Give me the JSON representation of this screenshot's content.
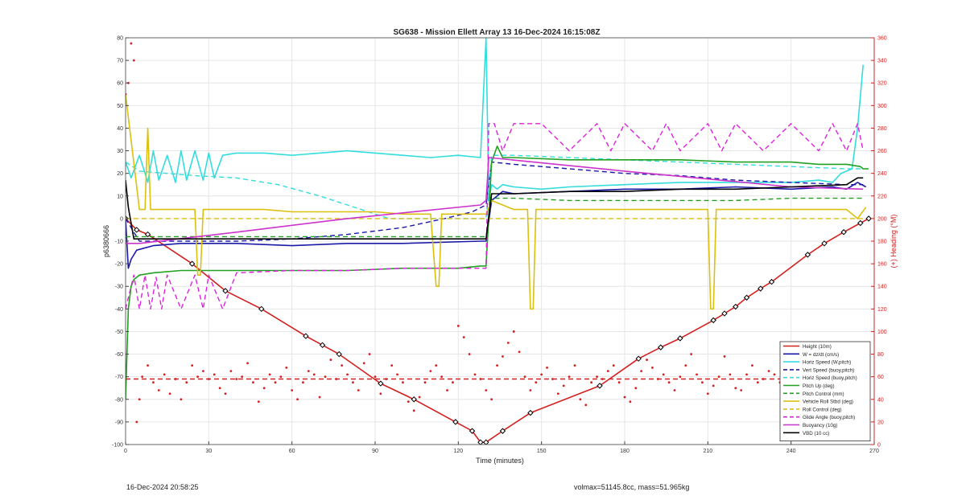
{
  "chart_data": {
    "type": "line",
    "title": "SG638 - Mission Ellett Array 13 16-Dec-2024 16:15:08Z",
    "xlabel": "Time (minutes)",
    "ylabel": "p6380666",
    "y2label": "(+) Heading (°M)",
    "xlim": [
      0,
      270
    ],
    "ylim": [
      -100,
      80
    ],
    "y2lim": [
      0,
      360
    ],
    "xticks": [
      0,
      30,
      60,
      90,
      120,
      150,
      180,
      210,
      240,
      270
    ],
    "yticks": [
      -100,
      -90,
      -80,
      -70,
      -60,
      -50,
      -40,
      -30,
      -20,
      -10,
      0,
      10,
      20,
      30,
      40,
      50,
      60,
      70,
      80
    ],
    "y2ticks": [
      0,
      20,
      40,
      60,
      80,
      100,
      120,
      140,
      160,
      180,
      200,
      220,
      240,
      260,
      280,
      300,
      320,
      340,
      360
    ],
    "grid": true,
    "legend_position": "bottom-right",
    "legend": [
      {
        "label": "Height (10m)",
        "color": "#d42020",
        "dash": false
      },
      {
        "label": "W = dz/dt (cm/s)",
        "color": "#1a1aa8",
        "dash": false
      },
      {
        "label": "Horiz Speed (W,pitch)",
        "color": "#33dddd",
        "dash": false
      },
      {
        "label": "Vert Speed (buoy,pitch)",
        "color": "#1a1aa8",
        "dash": true
      },
      {
        "label": "Horiz Speed (buoy,pitch)",
        "color": "#33dddd",
        "dash": true
      },
      {
        "label": "Pitch Up (deg)",
        "color": "#22a022",
        "dash": false
      },
      {
        "label": "Pitch Control (mm)",
        "color": "#22a022",
        "dash": true
      },
      {
        "label": "Vehicle Roll Stbd (deg)",
        "color": "#dcc010",
        "dash": false
      },
      {
        "label": "Roll Control (deg)",
        "color": "#dcc010",
        "dash": true
      },
      {
        "label": "Glide Angle (buoy,pitch)",
        "color": "#dd22dd",
        "dash": true
      },
      {
        "label": "Buoyancy (10g)",
        "color": "#cc33cc",
        "dash": false
      },
      {
        "label": "VBD (10 cc)",
        "color": "#000000",
        "dash": false
      }
    ],
    "series": [
      {
        "name": "Height (10m)",
        "axis": "left",
        "color": "#d42020",
        "marker": "diamond",
        "x": [
          0,
          4,
          8,
          24,
          36,
          49,
          65,
          71,
          77,
          92,
          104,
          119,
          125,
          128,
          130,
          136,
          146,
          171,
          185,
          193,
          200,
          212,
          216,
          220,
          224,
          229,
          233,
          246,
          252,
          259,
          265,
          268
        ],
        "y": [
          0,
          -5,
          -7,
          -20,
          -32,
          -40,
          -52,
          -56,
          -60,
          -73,
          -80,
          -90,
          -94,
          -99,
          -99,
          -94,
          -86,
          -74,
          -62,
          -57,
          -53,
          -45,
          -42,
          -39,
          -35,
          -31,
          -28,
          -16,
          -11,
          -6,
          -2,
          0
        ]
      },
      {
        "name": "W = dz/dt (cm/s)",
        "axis": "left",
        "color": "#1a1aa8",
        "dash": false,
        "x": [
          0,
          1,
          2,
          4,
          10,
          20,
          40,
          60,
          80,
          100,
          128,
          130,
          132,
          136,
          140,
          160,
          180,
          200,
          220,
          240,
          255,
          260,
          264,
          267
        ],
        "y": [
          0,
          -22,
          -18,
          -14,
          -12,
          -11,
          -11,
          -12,
          -11,
          -11,
          -10,
          -10,
          8,
          12,
          11,
          12,
          13,
          13,
          14,
          13,
          14,
          13,
          16,
          14
        ]
      },
      {
        "name": "Horiz Speed (W,pitch)",
        "axis": "left",
        "color": "#33dddd",
        "dash": false,
        "x": [
          0,
          2,
          5,
          8,
          10,
          12,
          15,
          18,
          20,
          22,
          25,
          28,
          30,
          32,
          35,
          40,
          50,
          60,
          70,
          80,
          90,
          100,
          110,
          120,
          128,
          130,
          131,
          132,
          134,
          136,
          140,
          150,
          160,
          180,
          200,
          220,
          240,
          250,
          255,
          258,
          262,
          264,
          266
        ],
        "y": [
          25,
          18,
          28,
          16,
          30,
          17,
          28,
          16,
          30,
          17,
          30,
          17,
          29,
          18,
          28,
          29,
          29,
          28,
          29,
          30,
          29,
          28,
          27,
          28,
          27,
          80,
          8,
          15,
          13,
          15,
          14,
          13,
          14,
          15,
          16,
          16,
          16,
          17,
          16,
          20,
          22,
          40,
          68
        ]
      },
      {
        "name": "Vert Speed (buoy,pitch)",
        "axis": "left",
        "color": "#1a1aa8",
        "dash": true,
        "x": [
          0,
          5,
          20,
          40,
          60,
          80,
          100,
          115,
          125,
          130,
          132,
          140,
          160,
          180,
          200,
          220,
          240,
          260,
          266
        ],
        "y": [
          0,
          -10,
          -10,
          -10,
          -9,
          -7,
          -4,
          0,
          3,
          6,
          25,
          24,
          22,
          20,
          19,
          17,
          16,
          15,
          15
        ]
      },
      {
        "name": "Horiz Speed (buoy,pitch)",
        "axis": "left",
        "color": "#33dddd",
        "dash": true,
        "x": [
          0,
          5,
          15,
          25,
          40,
          55,
          70,
          85,
          95,
          105,
          115,
          125,
          130,
          132,
          140,
          160,
          180,
          200,
          220,
          240,
          260,
          266
        ],
        "y": [
          25,
          21,
          20,
          19,
          18,
          15,
          10,
          4,
          0,
          0,
          0,
          0,
          0,
          28,
          28,
          27,
          26,
          25,
          24,
          23,
          22,
          22
        ]
      },
      {
        "name": "Pitch Up (deg)",
        "axis": "left",
        "color": "#22a022",
        "dash": false,
        "x": [
          0,
          1,
          2,
          3,
          5,
          10,
          20,
          40,
          60,
          80,
          100,
          120,
          128,
          130,
          132,
          134,
          136,
          140,
          160,
          180,
          200,
          220,
          240,
          250,
          260,
          265,
          266,
          268
        ],
        "y": [
          -80,
          -40,
          -30,
          -27,
          -25,
          -24,
          -23,
          -23,
          -23,
          -23,
          -22,
          -22,
          -21,
          -21,
          25,
          32,
          27,
          27,
          26,
          26,
          26,
          25,
          25,
          24,
          24,
          23,
          22,
          22
        ]
      },
      {
        "name": "Pitch Control (mm)",
        "axis": "left",
        "color": "#22a022",
        "dash": true,
        "x": [
          0,
          5,
          20,
          40,
          60,
          80,
          100,
          120,
          130,
          132,
          140,
          160,
          180,
          200,
          220,
          240,
          260,
          266
        ],
        "y": [
          -8,
          -8,
          -8,
          -8,
          -8,
          -8,
          -8,
          -8,
          -8,
          9,
          9,
          8,
          8,
          8,
          8,
          9,
          9,
          9
        ]
      },
      {
        "name": "Vehicle Roll Stbd (deg)",
        "axis": "left",
        "color": "#dcc010",
        "dash": false,
        "x": [
          0,
          5,
          7,
          8,
          9,
          10,
          20,
          25,
          26,
          27,
          28,
          40,
          50,
          60,
          70,
          80,
          90,
          100,
          110,
          112,
          113,
          114,
          120,
          128,
          130,
          132,
          140,
          145,
          146,
          147,
          148,
          160,
          180,
          200,
          210,
          211,
          212,
          213,
          230,
          240,
          250,
          260,
          264,
          267
        ],
        "y": [
          55,
          4,
          4,
          40,
          4,
          4,
          4,
          4,
          -25,
          -25,
          4,
          4,
          4,
          3,
          3,
          3,
          3,
          2,
          2,
          -30,
          -30,
          2,
          2,
          2,
          2,
          8,
          4,
          4,
          -40,
          -40,
          4,
          4,
          4,
          4,
          4,
          -40,
          -40,
          4,
          4,
          4,
          4,
          4,
          0,
          5
        ]
      },
      {
        "name": "Roll Control (deg)",
        "axis": "left",
        "color": "#dcc010",
        "dash": true,
        "x": [
          0,
          5,
          10,
          20,
          40,
          60,
          80,
          100,
          120,
          130,
          132,
          140,
          160,
          180,
          200,
          220,
          240,
          260,
          266
        ],
        "y": [
          0,
          0,
          0,
          0,
          0,
          0,
          0,
          0,
          0,
          0,
          0,
          0,
          0,
          0,
          0,
          0,
          0,
          0,
          0
        ]
      },
      {
        "name": "Glide Angle (buoy,pitch)",
        "axis": "left",
        "color": "#dd22dd",
        "dash": true,
        "x": [
          0,
          3,
          5,
          7,
          9,
          11,
          13,
          15,
          20,
          25,
          28,
          30,
          35,
          40,
          60,
          80,
          100,
          120,
          130,
          131,
          133,
          136,
          140,
          145,
          150,
          160,
          170,
          175,
          180,
          190,
          195,
          200,
          210,
          215,
          220,
          230,
          240,
          250,
          255,
          260,
          264,
          266
        ],
        "y": [
          -40,
          -25,
          -40,
          -25,
          -40,
          -26,
          -40,
          -25,
          -40,
          -25,
          -40,
          -25,
          -40,
          -24,
          -23,
          -23,
          -22,
          -22,
          -22,
          42,
          42,
          30,
          42,
          42,
          42,
          30,
          42,
          30,
          42,
          30,
          42,
          30,
          42,
          30,
          42,
          30,
          42,
          30,
          42,
          30,
          42,
          30
        ]
      },
      {
        "name": "Buoyancy (10g)",
        "axis": "left",
        "color": "#cc33cc",
        "dash": false,
        "x": [
          0,
          5,
          40,
          80,
          128,
          130,
          131,
          180,
          240,
          266
        ],
        "y": [
          -11,
          -11,
          -6,
          0,
          6,
          8,
          27,
          21,
          14,
          13
        ]
      },
      {
        "name": "VBD (10 cc)",
        "axis": "left",
        "color": "#000000",
        "dash": false,
        "x": [
          0,
          1,
          3,
          20,
          40,
          60,
          80,
          100,
          128,
          130,
          132,
          140,
          160,
          180,
          200,
          220,
          240,
          260,
          264,
          266
        ],
        "y": [
          17,
          5,
          -9,
          -9,
          -9,
          -9,
          -9,
          -9,
          -9,
          -9,
          11,
          11,
          12,
          12,
          13,
          13,
          14,
          15,
          18,
          18
        ]
      },
      {
        "name": "Heading",
        "axis": "right",
        "color": "#d42020",
        "marker": "dot",
        "x": [
          0,
          1,
          2,
          3,
          4,
          5,
          6,
          8,
          10,
          12,
          14,
          16,
          18,
          20,
          22,
          24,
          26,
          28,
          30,
          32,
          34,
          36,
          38,
          40,
          42,
          44,
          46,
          48,
          50,
          52,
          54,
          56,
          58,
          60,
          62,
          64,
          66,
          68,
          70,
          72,
          74,
          76,
          78,
          80,
          82,
          84,
          86,
          88,
          90,
          92,
          94,
          96,
          98,
          100,
          102,
          104,
          106,
          108,
          110,
          112,
          114,
          116,
          118,
          120,
          122,
          124,
          126,
          128,
          130,
          132,
          134,
          136,
          138,
          140,
          142,
          144,
          146,
          148,
          150,
          152,
          154,
          156,
          158,
          160,
          162,
          164,
          166,
          168,
          170,
          172,
          174,
          176,
          178,
          180,
          182,
          184,
          186,
          188,
          190,
          192,
          194,
          196,
          198,
          200,
          202,
          204,
          206,
          208,
          210,
          212,
          214,
          216,
          218,
          220,
          222,
          224,
          226,
          228,
          230,
          232,
          234,
          236,
          238,
          240,
          242,
          244,
          246,
          248,
          250,
          252,
          254,
          256,
          258,
          260,
          262,
          264,
          266
        ],
        "y": [
          310,
          320,
          355,
          340,
          20,
          40,
          60,
          70,
          55,
          48,
          62,
          45,
          58,
          40,
          55,
          70,
          60,
          65,
          58,
          62,
          50,
          45,
          65,
          58,
          60,
          72,
          55,
          38,
          50,
          62,
          55,
          60,
          68,
          48,
          40,
          55,
          65,
          62,
          42,
          60,
          75,
          58,
          70,
          62,
          55,
          48,
          72,
          80,
          60,
          45,
          58,
          70,
          62,
          55,
          38,
          30,
          42,
          55,
          65,
          70,
          60,
          48,
          55,
          105,
          95,
          80,
          62,
          58,
          48,
          40,
          70,
          78,
          90,
          100,
          82,
          60,
          48,
          55,
          62,
          68,
          58,
          45,
          52,
          60,
          70,
          40,
          35,
          55,
          60,
          58,
          65,
          70,
          55,
          42,
          38,
          50,
          65,
          75,
          68,
          58,
          62,
          55,
          48,
          60,
          70,
          80,
          62,
          55,
          45,
          52,
          60,
          78,
          62,
          50,
          48,
          62,
          70,
          55,
          58,
          65,
          62,
          55,
          70,
          48,
          40,
          55,
          60,
          65,
          70,
          50,
          48,
          45,
          58,
          62,
          55,
          70,
          85
        ]
      },
      {
        "name": "Heading mean",
        "axis": "right",
        "color": "#d42020",
        "dash": true,
        "x": [
          0,
          266
        ],
        "y": [
          58,
          58
        ]
      }
    ]
  },
  "footer": {
    "timestamp": "16-Dec-2024 20:58:25",
    "mass_info": "volmax=51145.8cc, mass=51.965kg"
  }
}
